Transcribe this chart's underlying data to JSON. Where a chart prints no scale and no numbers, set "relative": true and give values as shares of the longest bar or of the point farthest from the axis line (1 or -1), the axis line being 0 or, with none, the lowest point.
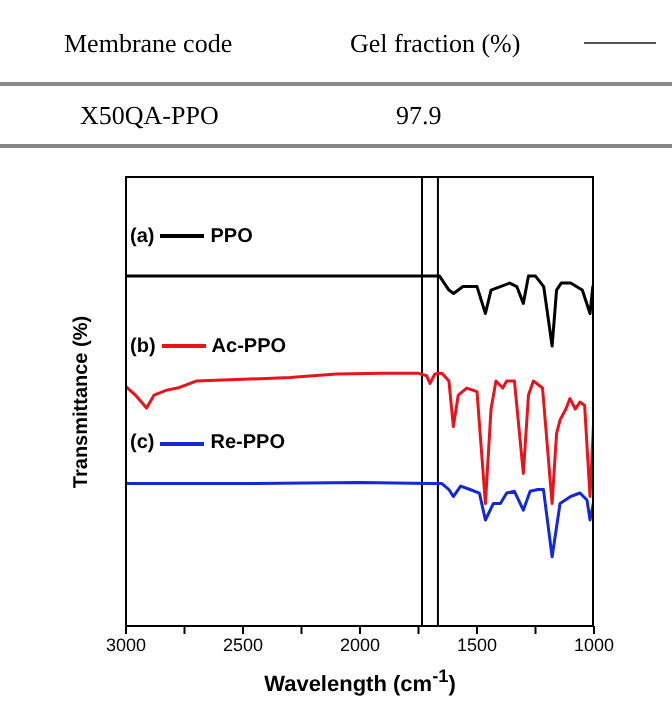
{
  "chart_data": {
    "type": "line",
    "relative": true,
    "xlabel": "Wavelength (cm$^{-1}$)",
    "ylabel": "Transmittance (%)",
    "xlim": [
      3000,
      1000
    ],
    "xticks": [
      3000,
      {
        "value": 2750,
        "label": null
      },
      2500,
      {
        "value": 2250,
        "label": null
      },
      2000,
      {
        "value": 1750,
        "label": null
      },
      1500,
      {
        "value": 1250,
        "label": null
      },
      1000
    ],
    "legend": "left",
    "grid": false,
    "annotations": [
      "Membrane code",
      "Gel fraction (%)",
      "X50QA-PPO",
      "97.9",
      "(a)",
      "(b)",
      "(c)"
    ],
    "ref_lines": [
      {
        "axis": "x",
        "value": 1735,
        "color": "#000000"
      },
      {
        "axis": "x",
        "value": 1667,
        "color": "#000000"
      }
    ],
    "series": [
      {
        "name": "PPO",
        "color": "#000000",
        "x": [
          3000,
          2500,
          2000,
          1700,
          1660,
          1620,
          1600,
          1560,
          1500,
          1464,
          1440,
          1400,
          1360,
          1330,
          1302,
          1280,
          1250,
          1215,
          1179,
          1160,
          1140,
          1100,
          1050,
          1017,
          1005,
          1000
        ],
        "values": [
          1.0,
          1.0,
          1.0,
          1.0,
          1.0,
          0.96,
          0.95,
          0.97,
          0.97,
          0.893,
          0.96,
          0.97,
          0.98,
          0.97,
          0.922,
          1.0,
          1.0,
          0.97,
          0.8,
          0.96,
          0.98,
          0.98,
          0.96,
          0.893,
          0.97,
          0.95
        ]
      },
      {
        "name": "Ac-PPO",
        "color": "#e8141b",
        "x": [
          3000,
          2960,
          2912,
          2880,
          2826,
          2780,
          2700,
          2500,
          2300,
          2100,
          1900,
          1750,
          1715,
          1701,
          1680,
          1650,
          1620,
          1601,
          1580,
          1544,
          1500,
          1464,
          1440,
          1419,
          1390,
          1373,
          1340,
          1302,
          1280,
          1259,
          1220,
          1179,
          1160,
          1145,
          1120,
          1103,
          1080,
          1060,
          1040,
          1017,
          1000
        ],
        "values": [
          0.684,
          0.66,
          0.623,
          0.66,
          0.674,
          0.68,
          0.7,
          0.705,
          0.71,
          0.72,
          0.722,
          0.722,
          0.715,
          0.693,
          0.72,
          0.722,
          0.7,
          0.57,
          0.66,
          0.68,
          0.67,
          0.35,
          0.62,
          0.7,
          0.68,
          0.7,
          0.7,
          0.436,
          0.66,
          0.7,
          0.68,
          0.35,
          0.55,
          0.589,
          0.62,
          0.65,
          0.62,
          0.64,
          0.63,
          0.37,
          0.607
        ]
      },
      {
        "name": "Re-PPO",
        "color": "#1428d8",
        "x": [
          3000,
          2500,
          2000,
          1700,
          1650,
          1620,
          1601,
          1570,
          1530,
          1490,
          1464,
          1430,
          1400,
          1373,
          1340,
          1302,
          1273,
          1240,
          1216,
          1179,
          1145,
          1100,
          1060,
          1030,
          1017,
          1000
        ],
        "values": [
          0.407,
          0.407,
          0.41,
          0.407,
          0.407,
          0.39,
          0.37,
          0.4,
          0.39,
          0.38,
          0.303,
          0.35,
          0.35,
          0.38,
          0.385,
          0.331,
          0.385,
          0.39,
          0.39,
          0.198,
          0.35,
          0.37,
          0.38,
          0.36,
          0.303,
          0.36
        ]
      }
    ]
  }
}
